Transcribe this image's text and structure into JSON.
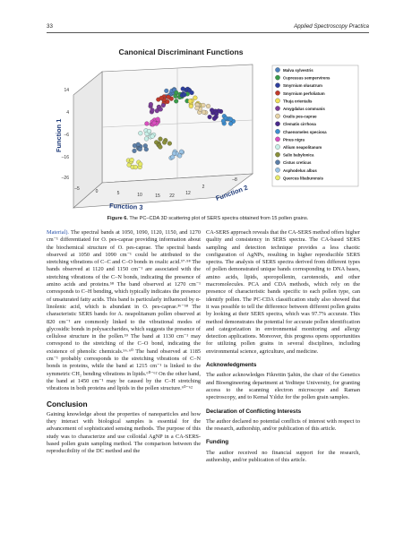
{
  "header": {
    "page_number": "33",
    "journal": "Applied Spectroscopy Practica"
  },
  "figure": {
    "title": "Canonical Discriminant Functions",
    "axis_y_label": "Function 1",
    "axis_x_label": "Function 3",
    "axis_z_label": "Function 2",
    "y_ticks": [
      "14",
      "4",
      "–6",
      "–16",
      "–26"
    ],
    "x_ticks": [
      "–5",
      "0",
      "5",
      "10",
      "15",
      "22"
    ],
    "z_ticks": [
      "12",
      "2",
      "–8"
    ],
    "legend": [
      {
        "name": "Malva sylvestris",
        "color": "#4f81bd"
      },
      {
        "name": "Cupressus sempervirens",
        "color": "#3a9c4a"
      },
      {
        "name": "Smyrnium olusatrum",
        "color": "#2e3f9e"
      },
      {
        "name": "Smyrnium perfoliatum",
        "color": "#c0392b"
      },
      {
        "name": "Thuja orientalis",
        "color": "#f1e05a"
      },
      {
        "name": "Amygdalus communis",
        "color": "#7d3c98"
      },
      {
        "name": "Oxalis pes-caprae",
        "color": "#e6d3a8"
      },
      {
        "name": "Clematis cirrhosa",
        "color": "#4a2a8c"
      },
      {
        "name": "Chaenomeles speciosa",
        "color": "#3f8fd0"
      },
      {
        "name": "Pinus nigra",
        "color": "#d94fbf"
      },
      {
        "name": "Allium neapolitanum",
        "color": "#c8f0e8"
      },
      {
        "name": "Salix babylonica",
        "color": "#8a8f3a"
      },
      {
        "name": "Cistus creticus",
        "color": "#5c7fa8"
      },
      {
        "name": "Asphodelus albus",
        "color": "#9bc4e6"
      },
      {
        "name": "Quercus libaburensis",
        "color": "#e8eb6a"
      }
    ]
  },
  "caption": {
    "label": "Figure 6.",
    "text": " The PC–CDA 3D scattering plot of SERS spectra obtained from 15 pollen grains."
  },
  "left": {
    "p1_link": "Material).",
    "p1": " The spectral bands at 1050, 1090, 1120, 1150, and 1270 cm⁻¹ differentiated for O. pes-caprae providing information about the biochemical structure of O. pes-caprae. The spectral bands observed at 1050 and 1090 cm⁻¹ could be attributed to the stretching vibrations of C–C and C–O bonds in oxalic acid.⁵⁷·⁵⁸ The bands observed at 1120 and 1150 cm⁻¹ are associated with the stretching vibrations of the C–N bonds, indicating the presence of amino acids and proteins.⁵⁸ The band observed at 1270 cm⁻¹ corresponds to C–H bending, which typically indicates the presence of unsaturated fatty acids. This band is particularly influenced by α-linolenic acid, which is abundant in O. pes-caprae.³⁶⁻⁵⁸ The characteristic SERS bands for A. neapolitanum pollen observed at 820 cm⁻¹ are commonly linked to the vibrational modes of glycosidic bonds in polysaccharides, which suggests the presence of cellulose structure in the pollen.⁵⁹ The band at 1130 cm⁻¹ may correspond to the stretching of the C–O bond, indicating the existence of phenolic chemicals.⁵⁶·⁶⁰ The band observed at 1185 cm⁻¹ probably corresponds to the stretching vibrations of C–N bonds in proteins, while the band at 1215 cm⁻¹ is linked to the symmetric CH₂ bending vibrations in lipids.⁶⁰⁻⁶² On the other hand, the band at 1450 cm⁻¹ may be caused by the C–H stretching vibrations in both proteins and lipids in the pollen structure.⁶⁰⁻⁶²",
    "conclusion_heading": "Conclusion",
    "conclusion": "Gaining knowledge about the properties of nanoparticles and how they interact with biological samples is essential for the advancement of sophisticated sensing methods. The purpose of this study was to characterize and use colloidal AgNP in a CA-SERS-based pollen grain sampling method. The comparison between the reproducibility of the DC method and the"
  },
  "right": {
    "p1": "CA-SERS approach reveals that the CA-SERS method offers higher quality and consistency in SERS spectra. The CA-based SERS sampling and detection technique provides a less chaotic configuration of AgNPs, resulting in higher reproducible SERS spectra. The analysis of SERS spectra derived from different types of pollen demonstrated unique bands corresponding to DNA bases, amino acids, lipids, sporopollenin, carotenoids, and other macromolecules. PCA and CDA methods, which rely on the presence of characteristic bands specific to each pollen type, can identify pollen. The PC-CDA classification study also showed that it was possible to tell the difference between different pollen grains by looking at their SERS spectra, which was 97.7% accurate. This method demonstrates the potential for accurate pollen identification and categorization in environmental monitoring and allergy detection applications. Moreover, this progress opens opportunities for utilizing pollen grains in several disciplines, including environmental science, agriculture, and medicine.",
    "ack_heading": "Acknowledgments",
    "ack": "The author acknowledges Fikrettin Şahin, the chair of the Genetics and Bioengineering department at Yeditepe University, for granting access to the scanning electron microscope and Raman spectroscopy, and to Kemal Yıldız for the pollen grain samples.",
    "coi_heading": "Declaration of Conflicting Interests",
    "coi": "The author declared no potential conflicts of interest with respect to the research, authorship, and/or publication of this article.",
    "funding_heading": "Funding",
    "funding": "The author received no financial support for the research, authorship, and/or publication of this article."
  }
}
